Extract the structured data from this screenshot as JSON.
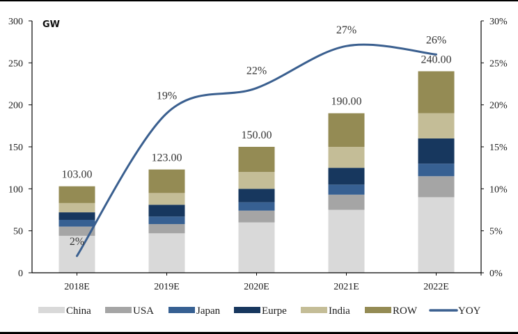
{
  "chart_data": {
    "type": "bar",
    "stacked": true,
    "title": "",
    "unit_label": "GW",
    "xlabel": "",
    "ylabel": "GW",
    "categories": [
      "2018E",
      "2019E",
      "2020E",
      "2021E",
      "2022E"
    ],
    "series": [
      {
        "name": "China",
        "color": "#D9D9D9",
        "values": [
          44,
          47,
          60,
          75,
          90
        ]
      },
      {
        "name": "USA",
        "color": "#A5A5A5",
        "values": [
          11,
          11,
          14,
          18,
          25
        ]
      },
      {
        "name": "Japan",
        "color": "#376092",
        "values": [
          8,
          9,
          10,
          12,
          15
        ]
      },
      {
        "name": "Eurpe",
        "color": "#17375E",
        "values": [
          9,
          14,
          16,
          20,
          30
        ]
      },
      {
        "name": "India",
        "color": "#C4BD97",
        "values": [
          11,
          14,
          20,
          25,
          30
        ]
      },
      {
        "name": "ROW",
        "color": "#948B54",
        "values": [
          20,
          28,
          30,
          40,
          50
        ]
      }
    ],
    "totals": [
      103,
      123,
      150,
      190,
      240
    ],
    "total_labels": [
      "103.00",
      "123.00",
      "150.00",
      "190.00",
      "240.00"
    ],
    "line_series": {
      "name": "YOY",
      "color": "#3A5F8F",
      "axis": "right",
      "values": [
        2,
        19,
        22,
        27,
        26
      ],
      "labels": [
        "2%",
        "19%",
        "22%",
        "27%",
        "26%"
      ]
    },
    "ylim": [
      0,
      300
    ],
    "yticks": [
      0,
      50,
      100,
      150,
      200,
      250,
      300
    ],
    "ytick_labels": [
      "0",
      "50",
      "100",
      "150",
      "200",
      "250",
      "300"
    ],
    "y2lim": [
      0,
      30
    ],
    "y2ticks": [
      0,
      5,
      10,
      15,
      20,
      25,
      30
    ],
    "y2tick_labels": [
      "0%",
      "5%",
      "10%",
      "15%",
      "20%",
      "25%",
      "30%"
    ],
    "grid": false,
    "legend": {
      "placement": "bottom",
      "entries": [
        "China",
        "USA",
        "Japan",
        "Eurpe",
        "India",
        "ROW",
        "YOY"
      ]
    }
  }
}
